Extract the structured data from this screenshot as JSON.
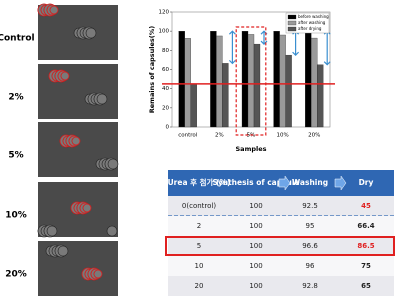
{
  "micrographs": {
    "labels": [
      "Control",
      "2%",
      "5%",
      "10%",
      "20%"
    ]
  },
  "chart_data": {
    "type": "bar",
    "ylabel": "Remains of capsules(%)",
    "xlabel": "Samples",
    "categories": [
      "control",
      "2%",
      "5%",
      "10%",
      "20%"
    ],
    "series": [
      {
        "name": "before washing",
        "color": "#000000",
        "values": [
          100,
          100,
          100,
          100,
          100
        ]
      },
      {
        "name": "after washing",
        "color": "#9a9a9a",
        "values": [
          92.5,
          95,
          96.6,
          96,
          92.8
        ]
      },
      {
        "name": "after drying",
        "color": "#555555",
        "values": [
          45,
          66.4,
          86.5,
          75,
          65
        ]
      }
    ],
    "ylim": [
      0,
      120
    ],
    "yticks": [
      0,
      20,
      40,
      60,
      80,
      100,
      120
    ],
    "legend": "top-right"
  },
  "table": {
    "header": [
      "Urea 후 첨가 (%)",
      "Synthesis of capsule",
      "Washing",
      "Dry"
    ],
    "rows": [
      [
        "0(control)",
        100,
        92.5,
        45
      ],
      [
        2,
        100,
        95,
        66.4
      ],
      [
        5,
        100,
        96.6,
        86.5
      ],
      [
        10,
        100,
        96,
        75
      ],
      [
        20,
        100,
        92.8,
        65
      ]
    ]
  }
}
